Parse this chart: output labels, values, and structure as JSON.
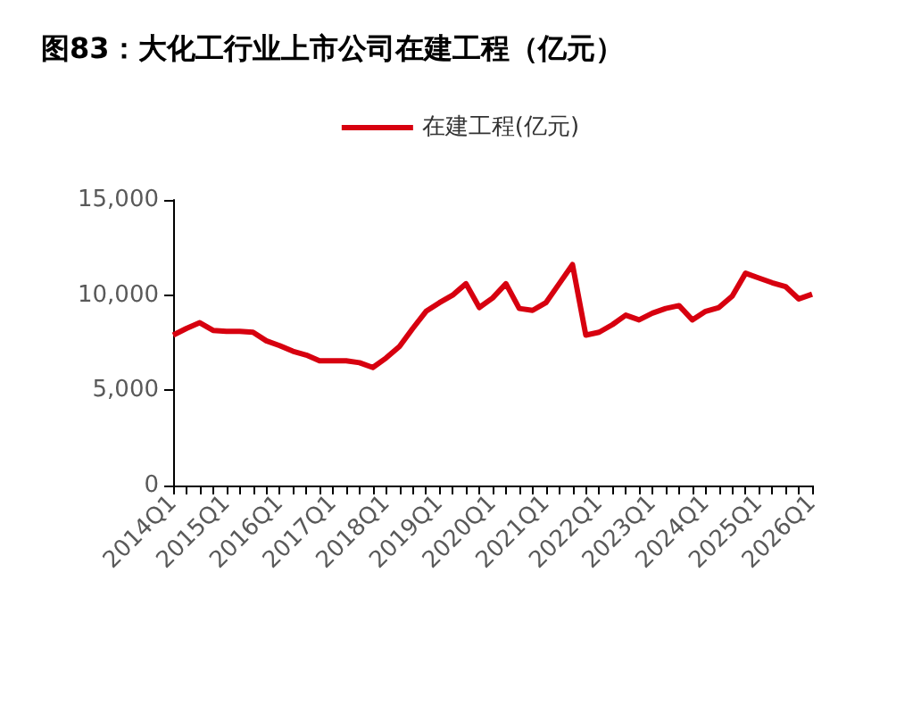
{
  "chart_data": {
    "type": "line",
    "title": "图83：大化工行业上市公司在建工程（亿元）",
    "categories": [
      "2014Q1",
      null,
      null,
      null,
      "2015Q1",
      null,
      null,
      null,
      "2016Q1",
      null,
      null,
      null,
      "2017Q1",
      null,
      null,
      null,
      "2018Q1",
      null,
      null,
      null,
      "2019Q1",
      null,
      null,
      null,
      "2020Q1",
      null,
      null,
      null,
      "2021Q1",
      null,
      null,
      null,
      "2022Q1",
      null,
      null,
      null,
      "2023Q1",
      null,
      null,
      null,
      "2024Q1",
      null,
      null,
      null,
      "2025Q1",
      null,
      null,
      null,
      "2026Q1"
    ],
    "series": [
      {
        "name": "在建工程(亿元)",
        "color": "#d7000f",
        "values": [
          7900,
          8250,
          8550,
          8150,
          8100,
          8100,
          8050,
          7600,
          7350,
          7050,
          6850,
          6550,
          6550,
          6550,
          6450,
          6200,
          6700,
          7300,
          8250,
          9150,
          9600,
          10000,
          10600,
          9350,
          9850,
          10600,
          9300,
          9200,
          9600,
          10600,
          11600,
          7900,
          8050,
          8450,
          8950,
          8700,
          9050,
          9300,
          9450,
          8700,
          9150,
          9350,
          9950,
          11150,
          10900,
          10650,
          10450,
          9800,
          10050
        ]
      }
    ],
    "ylim": [
      0,
      15000
    ],
    "yticks": [
      {
        "value": 0,
        "label": "0"
      },
      {
        "value": 5000,
        "label": "5,000"
      },
      {
        "value": 10000,
        "label": "10,000"
      },
      {
        "value": 15000,
        "label": "15,000"
      }
    ],
    "legend": "top",
    "grid": false,
    "marker": "none",
    "line_style": "solid"
  }
}
